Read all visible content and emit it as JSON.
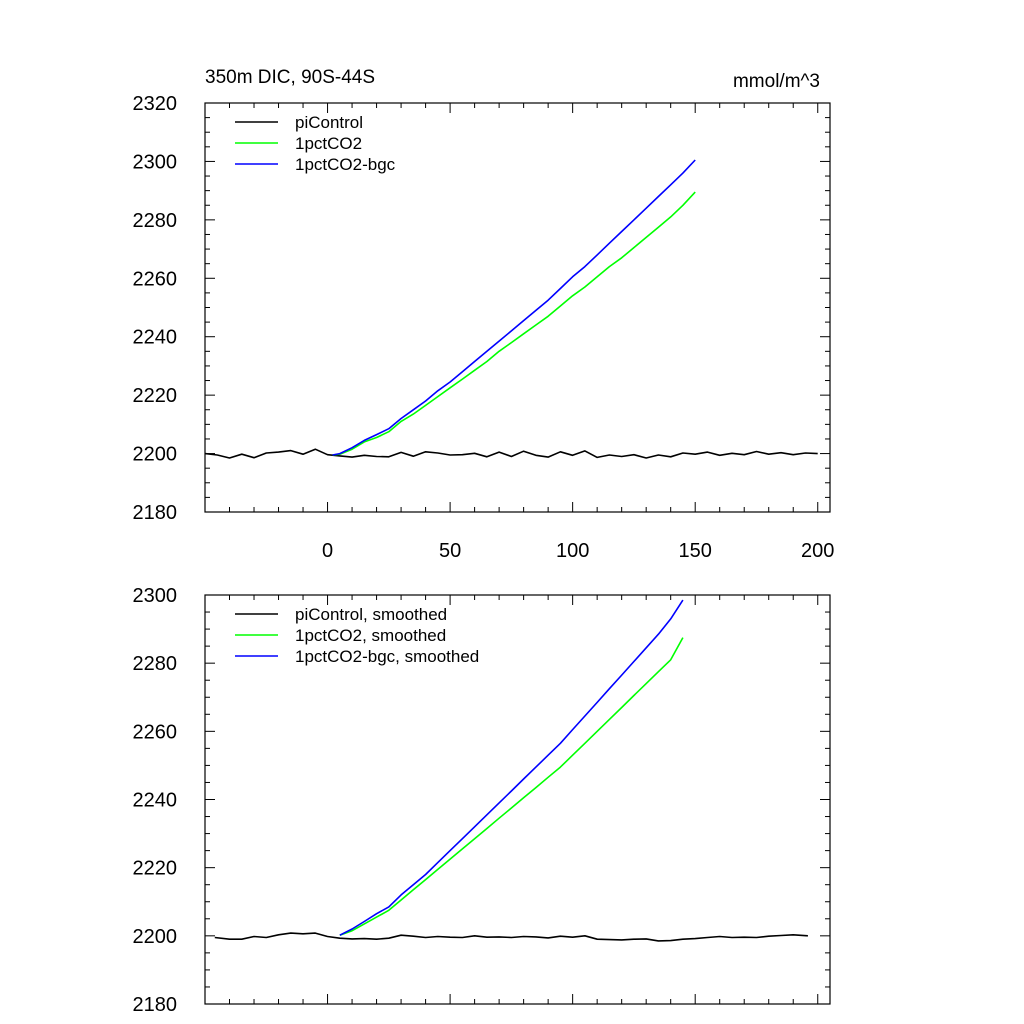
{
  "chart_data": [
    {
      "type": "line",
      "title": "350m DIC, 90S-44S",
      "units": "mmol/m^3",
      "xlim": [
        -50,
        205
      ],
      "ylim": [
        2180,
        2320
      ],
      "xticks": [
        0,
        50,
        100,
        150,
        200
      ],
      "yticks": [
        2180,
        2200,
        2220,
        2240,
        2260,
        2280,
        2300,
        2320
      ],
      "x_tick_labels_shown": true,
      "grid": false,
      "legend_position": "top-left",
      "series": [
        {
          "name": "piControl",
          "color": "#000000",
          "x": [
            -50,
            -45,
            -40,
            -35,
            -30,
            -25,
            -20,
            -15,
            -10,
            -5,
            0,
            5,
            10,
            15,
            20,
            25,
            30,
            35,
            40,
            45,
            50,
            55,
            60,
            65,
            70,
            75,
            80,
            85,
            90,
            95,
            100,
            105,
            110,
            115,
            120,
            125,
            130,
            135,
            140,
            145,
            150,
            155,
            160,
            165,
            170,
            175,
            180,
            185,
            190,
            195,
            200
          ],
          "values": [
            2200.0,
            2199.5,
            2198.5,
            2199.8,
            2198.6,
            2200.2,
            2200.5,
            2201.0,
            2199.8,
            2201.5,
            2199.6,
            2199.2,
            2198.8,
            2199.4,
            2199.0,
            2198.9,
            2200.4,
            2199.1,
            2200.6,
            2200.2,
            2199.5,
            2199.6,
            2200.1,
            2198.9,
            2200.5,
            2199.0,
            2200.8,
            2199.4,
            2198.8,
            2200.6,
            2199.4,
            2200.9,
            2198.7,
            2199.5,
            2199.0,
            2199.6,
            2198.5,
            2199.5,
            2198.9,
            2200.2,
            2199.8,
            2200.5,
            2199.4,
            2200.1,
            2199.6,
            2200.7,
            2199.8,
            2200.3,
            2199.6,
            2200.2,
            2200.0
          ]
        },
        {
          "name": "1pctCO2",
          "color": "#00ff00",
          "x": [
            2,
            5,
            10,
            15,
            20,
            25,
            30,
            35,
            40,
            45,
            50,
            55,
            60,
            65,
            70,
            75,
            80,
            85,
            90,
            95,
            100,
            105,
            110,
            115,
            120,
            125,
            130,
            135,
            140,
            145,
            150
          ],
          "values": [
            2199.5,
            2199.8,
            2201.5,
            2204.0,
            2205.5,
            2207.5,
            2211.0,
            2213.5,
            2216.5,
            2219.5,
            2222.5,
            2225.5,
            2228.5,
            2231.5,
            2235.0,
            2238.0,
            2241.0,
            2244.0,
            2247.0,
            2250.5,
            2254.0,
            2257.0,
            2260.5,
            2264.0,
            2267.0,
            2270.5,
            2274.0,
            2277.5,
            2281.0,
            2285.0,
            2289.5
          ]
        },
        {
          "name": "1pctCO2-bgc",
          "color": "#0000ff",
          "x": [
            2,
            5,
            10,
            15,
            20,
            25,
            30,
            35,
            40,
            45,
            50,
            55,
            60,
            65,
            70,
            75,
            80,
            85,
            90,
            95,
            100,
            105,
            110,
            115,
            120,
            125,
            130,
            135,
            140,
            145,
            150
          ],
          "values": [
            2199.5,
            2200.0,
            2202.0,
            2204.5,
            2206.5,
            2208.5,
            2212.0,
            2215.0,
            2218.0,
            2221.5,
            2224.5,
            2228.0,
            2231.5,
            2235.0,
            2238.5,
            2242.0,
            2245.5,
            2249.0,
            2252.5,
            2256.5,
            2260.5,
            2264.0,
            2268.0,
            2272.0,
            2276.0,
            2280.0,
            2284.0,
            2288.0,
            2292.0,
            2296.0,
            2300.5
          ]
        }
      ]
    },
    {
      "type": "line",
      "xlim": [
        -50,
        205
      ],
      "ylim": [
        2180,
        2300
      ],
      "xticks": [
        0,
        50,
        100,
        150,
        200
      ],
      "yticks": [
        2180,
        2200,
        2220,
        2240,
        2260,
        2280,
        2300
      ],
      "x_tick_labels_shown": false,
      "grid": false,
      "legend_position": "top-left",
      "series": [
        {
          "name": "piControl, smoothed",
          "color": "#000000",
          "x": [
            -46,
            -40,
            -35,
            -30,
            -25,
            -20,
            -15,
            -10,
            -5,
            0,
            5,
            10,
            15,
            20,
            25,
            30,
            35,
            40,
            45,
            50,
            55,
            60,
            65,
            70,
            75,
            80,
            85,
            90,
            95,
            100,
            105,
            110,
            115,
            120,
            125,
            130,
            135,
            140,
            145,
            150,
            155,
            160,
            165,
            170,
            175,
            180,
            185,
            190,
            196
          ],
          "values": [
            2199.5,
            2199.0,
            2199.0,
            2199.8,
            2199.5,
            2200.3,
            2200.8,
            2200.6,
            2200.8,
            2199.8,
            2199.3,
            2199.1,
            2199.2,
            2199.0,
            2199.3,
            2200.2,
            2199.9,
            2199.5,
            2199.8,
            2199.6,
            2199.5,
            2200.0,
            2199.6,
            2199.7,
            2199.5,
            2199.8,
            2199.7,
            2199.4,
            2199.9,
            2199.6,
            2200.0,
            2199.0,
            2198.9,
            2198.8,
            2199.0,
            2199.1,
            2198.5,
            2198.6,
            2199.0,
            2199.2,
            2199.5,
            2199.8,
            2199.5,
            2199.6,
            2199.5,
            2199.9,
            2200.1,
            2200.3,
            2200.0
          ]
        },
        {
          "name": "1pctCO2, smoothed",
          "color": "#00ff00",
          "x": [
            5,
            10,
            15,
            20,
            25,
            30,
            35,
            40,
            45,
            50,
            55,
            60,
            65,
            70,
            75,
            80,
            85,
            90,
            95,
            100,
            105,
            110,
            115,
            120,
            125,
            130,
            135,
            140,
            145
          ],
          "values": [
            2200.2,
            2201.5,
            2203.5,
            2205.5,
            2207.5,
            2210.5,
            2213.5,
            2216.5,
            2219.5,
            2222.5,
            2225.5,
            2228.5,
            2231.5,
            2234.5,
            2237.5,
            2240.5,
            2243.5,
            2246.5,
            2249.5,
            2253.0,
            2256.5,
            2260.0,
            2263.5,
            2267.0,
            2270.5,
            2274.0,
            2277.5,
            2281.0,
            2287.5
          ]
        },
        {
          "name": "1pctCO2-bgc, smoothed",
          "color": "#0000ff",
          "x": [
            5,
            10,
            15,
            20,
            25,
            30,
            35,
            40,
            45,
            50,
            55,
            60,
            65,
            70,
            75,
            80,
            85,
            90,
            95,
            100,
            105,
            110,
            115,
            120,
            125,
            130,
            135,
            140,
            145
          ],
          "values": [
            2200.2,
            2202.0,
            2204.2,
            2206.5,
            2208.5,
            2212.0,
            2215.0,
            2218.0,
            2221.5,
            2225.0,
            2228.5,
            2232.0,
            2235.5,
            2239.0,
            2242.5,
            2246.0,
            2249.5,
            2253.0,
            2256.5,
            2260.5,
            2264.5,
            2268.5,
            2272.5,
            2276.5,
            2280.5,
            2284.5,
            2288.5,
            2293.0,
            2298.5
          ]
        }
      ]
    }
  ]
}
